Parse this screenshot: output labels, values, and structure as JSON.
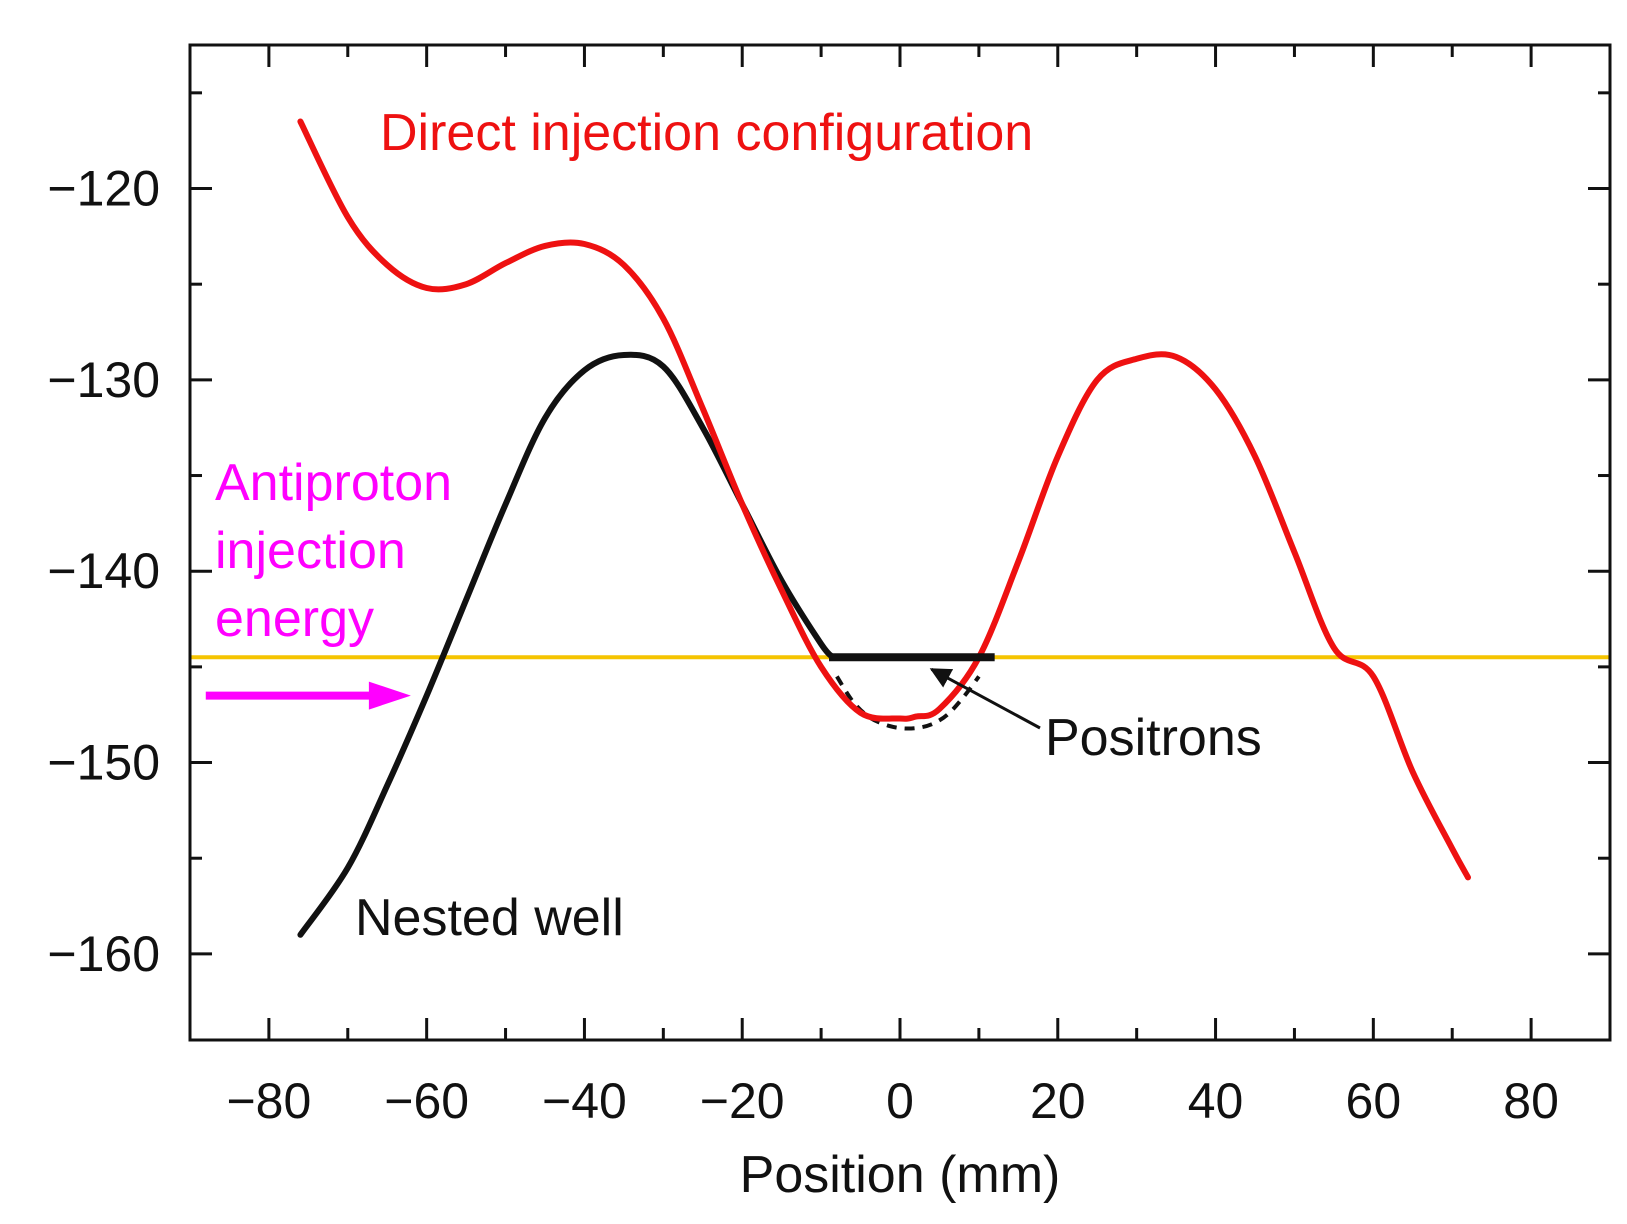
{
  "chart_data": {
    "type": "line",
    "title": "",
    "xlabel": "Position (mm)",
    "ylabel": "",
    "xlim": [
      -90,
      90
    ],
    "ylim": [
      -164.5,
      -112.5
    ],
    "xticks": [
      -80,
      -60,
      -40,
      -20,
      0,
      20,
      40,
      60,
      80
    ],
    "xtick_labels": [
      "−80",
      "−60",
      "−40",
      "−20",
      "0",
      "20",
      "40",
      "60",
      "80"
    ],
    "yticks": [
      -120,
      -130,
      -140,
      -150,
      -160
    ],
    "ytick_labels": [
      "−120",
      "−130",
      "−140",
      "−150",
      "−160"
    ],
    "grid": false,
    "colors": {
      "direct": "#ee1111",
      "nested": "#111111",
      "injection": "#f5c400",
      "annotation_magenta": "#ff00ff",
      "axis": "#111111"
    },
    "series": [
      {
        "name": "Direct injection configuration",
        "color": "#ee1111",
        "x": [
          -76,
          -70,
          -65,
          -60,
          -55,
          -50,
          -45,
          -40,
          -35,
          -30,
          -25,
          -20,
          -15,
          -10,
          -5,
          0,
          2,
          5,
          10,
          15,
          20,
          25,
          30,
          35,
          40,
          45,
          50,
          55,
          60,
          65,
          70,
          72
        ],
        "y": [
          -116.5,
          -121.5,
          -124.0,
          -125.2,
          -125.0,
          -123.9,
          -123.0,
          -122.9,
          -124.0,
          -126.8,
          -131.5,
          -136.5,
          -141.0,
          -145.0,
          -147.4,
          -147.7,
          -147.6,
          -147.2,
          -144.5,
          -139.5,
          -134.0,
          -130.0,
          -128.9,
          -128.8,
          -130.5,
          -134.0,
          -139.0,
          -144.0,
          -145.5,
          -150.5,
          -154.5,
          -156.0
        ]
      },
      {
        "name": "Nested well",
        "color": "#111111",
        "x": [
          -76,
          -70,
          -65,
          -60,
          -55,
          -50,
          -45,
          -40,
          -35,
          -30,
          -25,
          -20,
          -15,
          -10,
          -8.5
        ],
        "y": [
          -159.0,
          -155.5,
          -151.2,
          -146.5,
          -141.5,
          -136.5,
          -132.0,
          -129.5,
          -128.7,
          -129.3,
          -132.5,
          -136.5,
          -140.5,
          -143.8,
          -144.5
        ]
      }
    ],
    "positron_fill": {
      "x_range": [
        -9,
        12
      ],
      "level": -144.5,
      "dashed_bottom_x": [
        -8,
        -6,
        -4,
        -2,
        0,
        2,
        4,
        6,
        8,
        10
      ],
      "dashed_bottom_y": [
        -145.5,
        -146.8,
        -147.6,
        -148.0,
        -148.2,
        -148.2,
        -148.0,
        -147.5,
        -146.6,
        -145.5
      ]
    },
    "injection_energy": -144.5,
    "arrow": {
      "x_start": -88,
      "x_end": -62,
      "y": -146.5
    },
    "annotations": {
      "direct_label": "Direct injection configuration",
      "nested_label": "Nested well",
      "positrons_label": "Positrons",
      "antiproton_line1": "Antiproton",
      "antiproton_line2": "injection",
      "antiproton_line3": "energy"
    }
  }
}
